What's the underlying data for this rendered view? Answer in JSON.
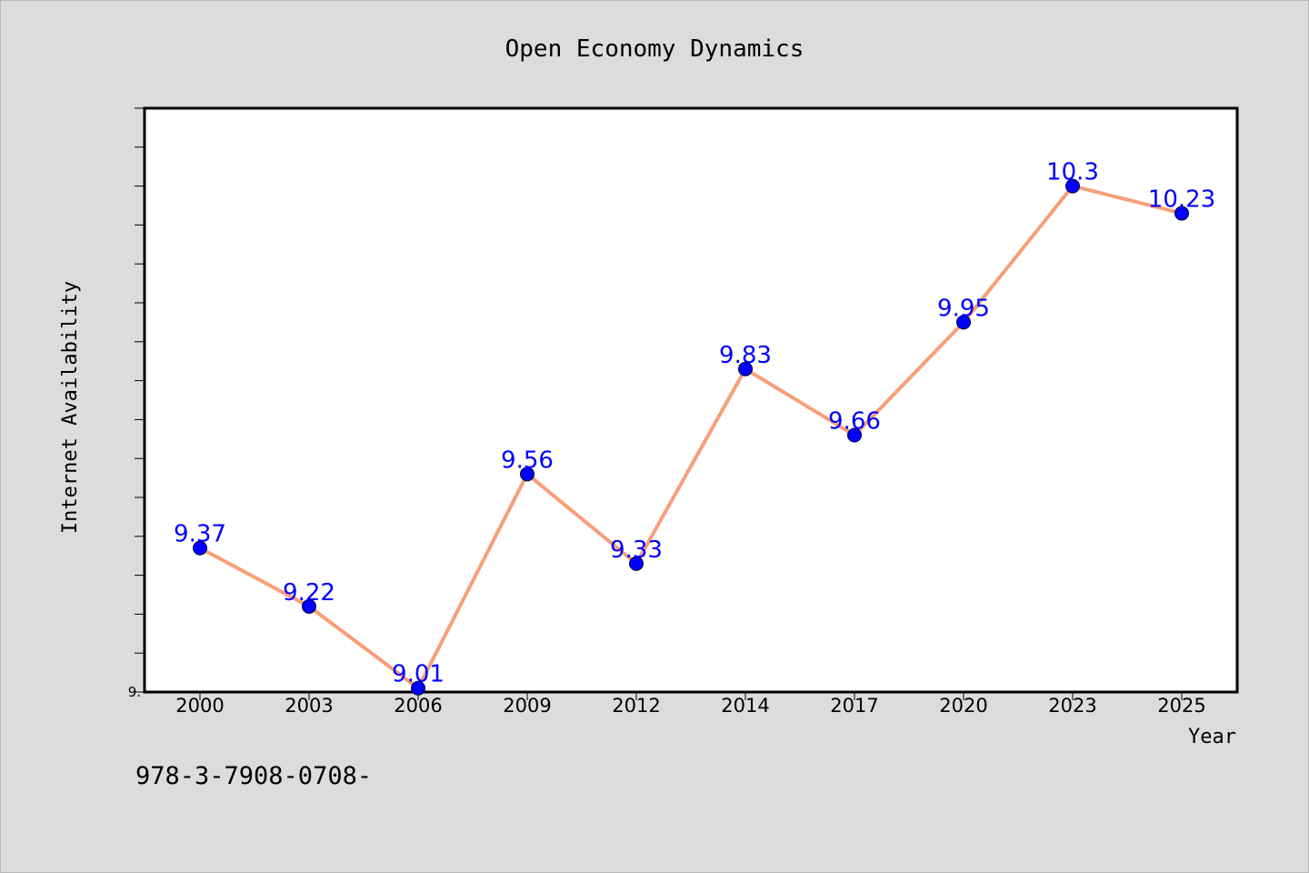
{
  "footer_text": "978-3-7908-0708-",
  "chart_data": {
    "type": "line",
    "title": "Open Economy Dynamics",
    "xlabel": "Year",
    "ylabel": "Internet Availability",
    "categories": [
      "2000",
      "2003",
      "2006",
      "2009",
      "2012",
      "2014",
      "2017",
      "2020",
      "2023",
      "2025"
    ],
    "values": [
      9.37,
      9.22,
      9.01,
      9.56,
      9.33,
      9.83,
      9.66,
      9.95,
      10.3,
      10.23
    ],
    "data_labels": [
      "9.37",
      "9.22",
      "9.01",
      "9.56",
      "9.33",
      "9.83",
      "9.66",
      "9.95",
      "10.3",
      "10.23"
    ],
    "ytick_labels": [
      "9."
    ],
    "ylim": [
      9.0,
      10.5
    ],
    "y_minor_step": 0.1,
    "grid": false,
    "legend": "none",
    "colors": {
      "line": "#f79f79",
      "marker": "#0000ff",
      "data_label": "#0000ff",
      "plot_background": "#ffffff",
      "figure_background": "#dcdcdc"
    }
  }
}
